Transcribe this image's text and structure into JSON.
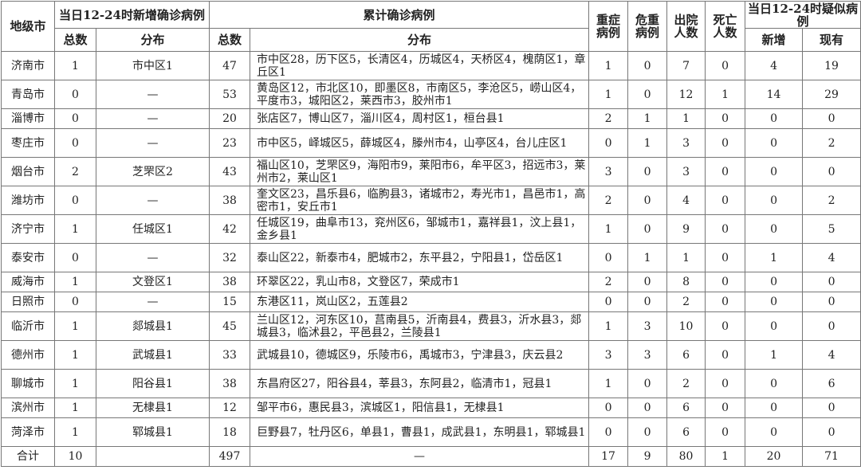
{
  "table": {
    "header": {
      "region": "地级市",
      "new_confirmed": "当日12-24时新增确诊病例",
      "cumulative": "累计确诊病例",
      "severe": "重症病例",
      "critical": "危重病例",
      "discharged": "出院人数",
      "deaths": "死亡人数",
      "suspected": "当日12-24时疑似病例",
      "sub": [
        "总数",
        "分布",
        "总数",
        "分布",
        "新增",
        "现有"
      ]
    },
    "rows": [
      [
        "济南市",
        1,
        "市中区1",
        47,
        "市中区28，历下区5，长清区4，历城区4，天桥区4，槐荫区1，章丘区1",
        1,
        0,
        7,
        0,
        4,
        19
      ],
      [
        "青岛市",
        0,
        "—",
        53,
        "黄岛区12，市北区10，即墨区8，市南区5，李沧区5，崂山区4，平度市3，城阳区2，莱西市3，胶州市1",
        1,
        0,
        12,
        1,
        14,
        29
      ],
      [
        "淄博市",
        0,
        "—",
        20,
        "张店区7，博山区7，淄川区4，周村区1，桓台县1",
        2,
        1,
        1,
        0,
        0,
        0
      ],
      [
        "枣庄市",
        0,
        "—",
        23,
        "市中区5，峄城区5，薛城区4，滕州市4，山亭区4，台儿庄区1",
        0,
        1,
        3,
        0,
        0,
        2
      ],
      [
        "烟台市",
        2,
        "芝罘区2",
        43,
        "福山区10，芝罘区9，海阳市9，莱阳市6，牟平区3，招远市3，莱州市2，莱山区1",
        3,
        0,
        3,
        0,
        0,
        0
      ],
      [
        "潍坊市",
        0,
        "—",
        38,
        "奎文区23，昌乐县6，临朐县3，诸城市2，寿光市1，昌邑市1，高密市1，安丘市1",
        2,
        0,
        4,
        0,
        0,
        2
      ],
      [
        "济宁市",
        1,
        "任城区1",
        42,
        "任城区19，曲阜市13，兖州区6，邹城市1，嘉祥县1，汶上县1，金乡县1",
        1,
        0,
        9,
        0,
        0,
        5
      ],
      [
        "泰安市",
        0,
        "—",
        32,
        "泰山区22，新泰市4，肥城市2，东平县2，宁阳县1，岱岳区1",
        0,
        1,
        1,
        0,
        1,
        4
      ],
      [
        "威海市",
        1,
        "文登区1",
        38,
        "环翠区22，乳山市8，文登区7，荣成市1",
        2,
        0,
        8,
        0,
        0,
        0
      ],
      [
        "日照市",
        0,
        "—",
        15,
        "东港区11，岚山区2，五莲县2",
        0,
        0,
        2,
        0,
        0,
        0
      ],
      [
        "临沂市",
        1,
        "郯城县1",
        45,
        "兰山区12，河东区10，莒南县5，沂南县4，费县3，沂水县3，郯城县3，临沭县2，平邑县2，兰陵县1",
        1,
        3,
        10,
        0,
        0,
        0
      ],
      [
        "德州市",
        1,
        "武城县1",
        33,
        "武城县10，德城区9，乐陵市6，禹城市3，宁津县3，庆云县2",
        3,
        3,
        6,
        0,
        1,
        4
      ],
      [
        "聊城市",
        1,
        "阳谷县1",
        38,
        "东昌府区27，阳谷县4，莘县3，东阿县2，临清市1，冠县1",
        1,
        0,
        2,
        0,
        0,
        6
      ],
      [
        "滨州市",
        1,
        "无棣县1",
        12,
        "邹平市6，惠民县3，滨城区1，阳信县1，无棣县1",
        0,
        0,
        6,
        0,
        0,
        0
      ],
      [
        "菏泽市",
        1,
        "郓城县1",
        18,
        "巨野县7，牡丹区6，单县1，曹县1，成武县1，东明县1，郓城县1",
        0,
        0,
        6,
        0,
        0,
        0
      ]
    ],
    "total": {
      "label": "合计",
      "new_total": 10,
      "cum_total": 497,
      "cum_dist": "—",
      "severe": 17,
      "critical": 9,
      "discharged": 80,
      "deaths": 1,
      "suspected_new": 20,
      "suspected_now": 71
    }
  }
}
